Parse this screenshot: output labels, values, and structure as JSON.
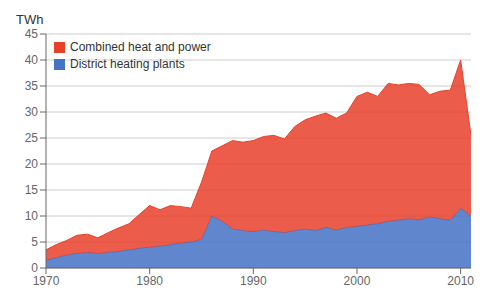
{
  "chart_data": {
    "type": "area",
    "stacked": true,
    "y_label": "TWh",
    "x": [
      1970,
      1971,
      1972,
      1973,
      1974,
      1975,
      1976,
      1977,
      1978,
      1979,
      1980,
      1981,
      1982,
      1983,
      1984,
      1985,
      1986,
      1987,
      1988,
      1989,
      1990,
      1991,
      1992,
      1993,
      1994,
      1995,
      1996,
      1997,
      1998,
      1999,
      2000,
      2001,
      2002,
      2003,
      2004,
      2005,
      2006,
      2007,
      2008,
      2009,
      2010,
      2011
    ],
    "series": [
      {
        "name": "District heating plants",
        "color": "#4472c4",
        "values": [
          1.5,
          2.0,
          2.5,
          2.8,
          3.0,
          2.8,
          3.0,
          3.2,
          3.5,
          3.8,
          4.0,
          4.2,
          4.5,
          4.8,
          5.0,
          5.5,
          10.0,
          9.0,
          7.5,
          7.2,
          7.0,
          7.3,
          7.0,
          6.8,
          7.2,
          7.5,
          7.2,
          7.8,
          7.3,
          7.8,
          8.0,
          8.3,
          8.5,
          9.0,
          9.2,
          9.5,
          9.3,
          9.8,
          9.5,
          9.2,
          11.5,
          10.0
        ]
      },
      {
        "name": "Combined heat and power",
        "color": "#e8412a",
        "values": [
          2.0,
          2.5,
          2.8,
          3.5,
          3.5,
          3.0,
          3.8,
          4.5,
          5.0,
          6.5,
          8.0,
          7.0,
          7.5,
          7.0,
          6.5,
          11.0,
          12.5,
          14.5,
          17.0,
          17.0,
          17.5,
          18.0,
          18.5,
          18.0,
          20.0,
          21.0,
          22.0,
          22.0,
          21.5,
          22.0,
          25.0,
          25.5,
          24.5,
          26.5,
          26.0,
          26.0,
          26.0,
          23.5,
          24.5,
          25.0,
          28.5,
          15.5
        ]
      }
    ],
    "xlim": [
      1970,
      2011
    ],
    "xticks": [
      1970,
      1980,
      1990,
      2000,
      2010
    ],
    "ylim": [
      0,
      45
    ],
    "yticks": [
      0,
      5,
      10,
      15,
      20,
      25,
      30,
      35,
      40,
      45
    ],
    "grid": true,
    "legend": "upper left"
  }
}
